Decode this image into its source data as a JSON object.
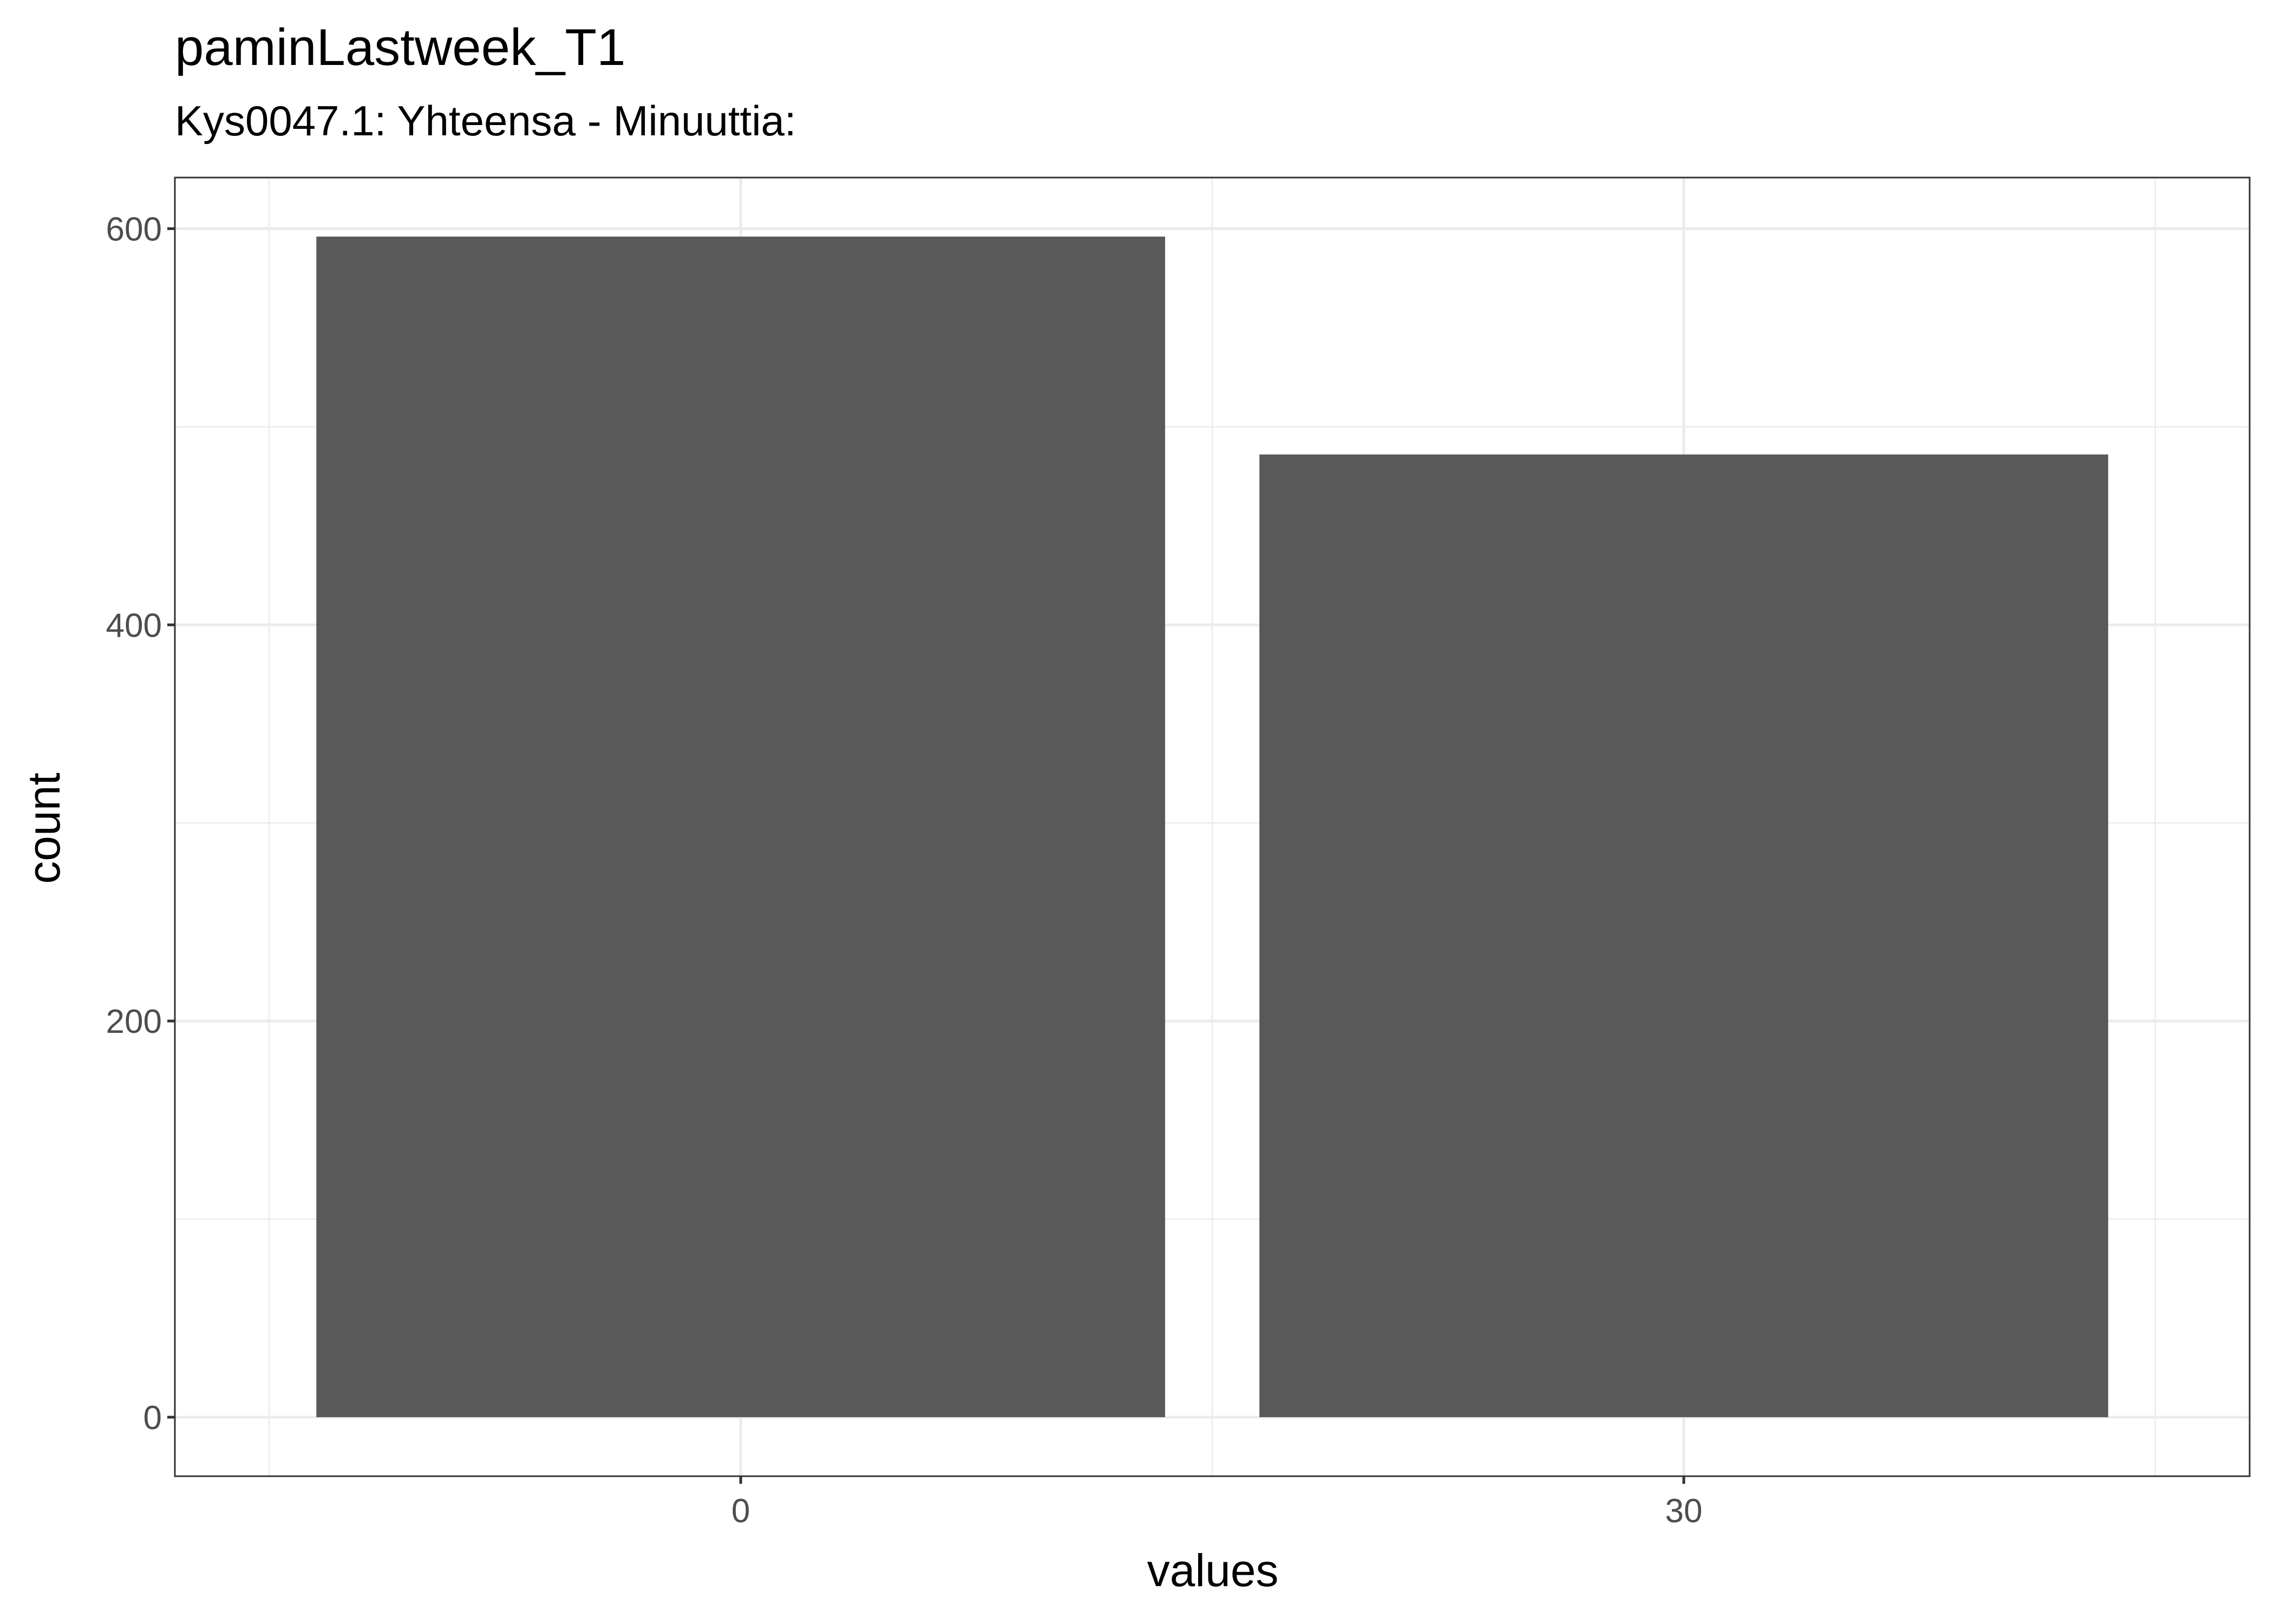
{
  "chart_data": {
    "type": "bar",
    "title": "paminLastweek_T1",
    "subtitle": "Kys0047.1: Yhteensa - Minuuttia:",
    "xlabel": "values",
    "ylabel": "count",
    "categories": [
      "0",
      "30"
    ],
    "values": [
      596,
      486
    ],
    "ylim": [
      -29.8,
      625.8
    ],
    "y_ticks": [
      0,
      200,
      400,
      600
    ],
    "y_tick_labels": [
      "0",
      "200",
      "400",
      "600"
    ],
    "grid": true,
    "bar_color": "#595959",
    "grid_color": "#ebebeb",
    "panel_border_color": "#333333"
  }
}
